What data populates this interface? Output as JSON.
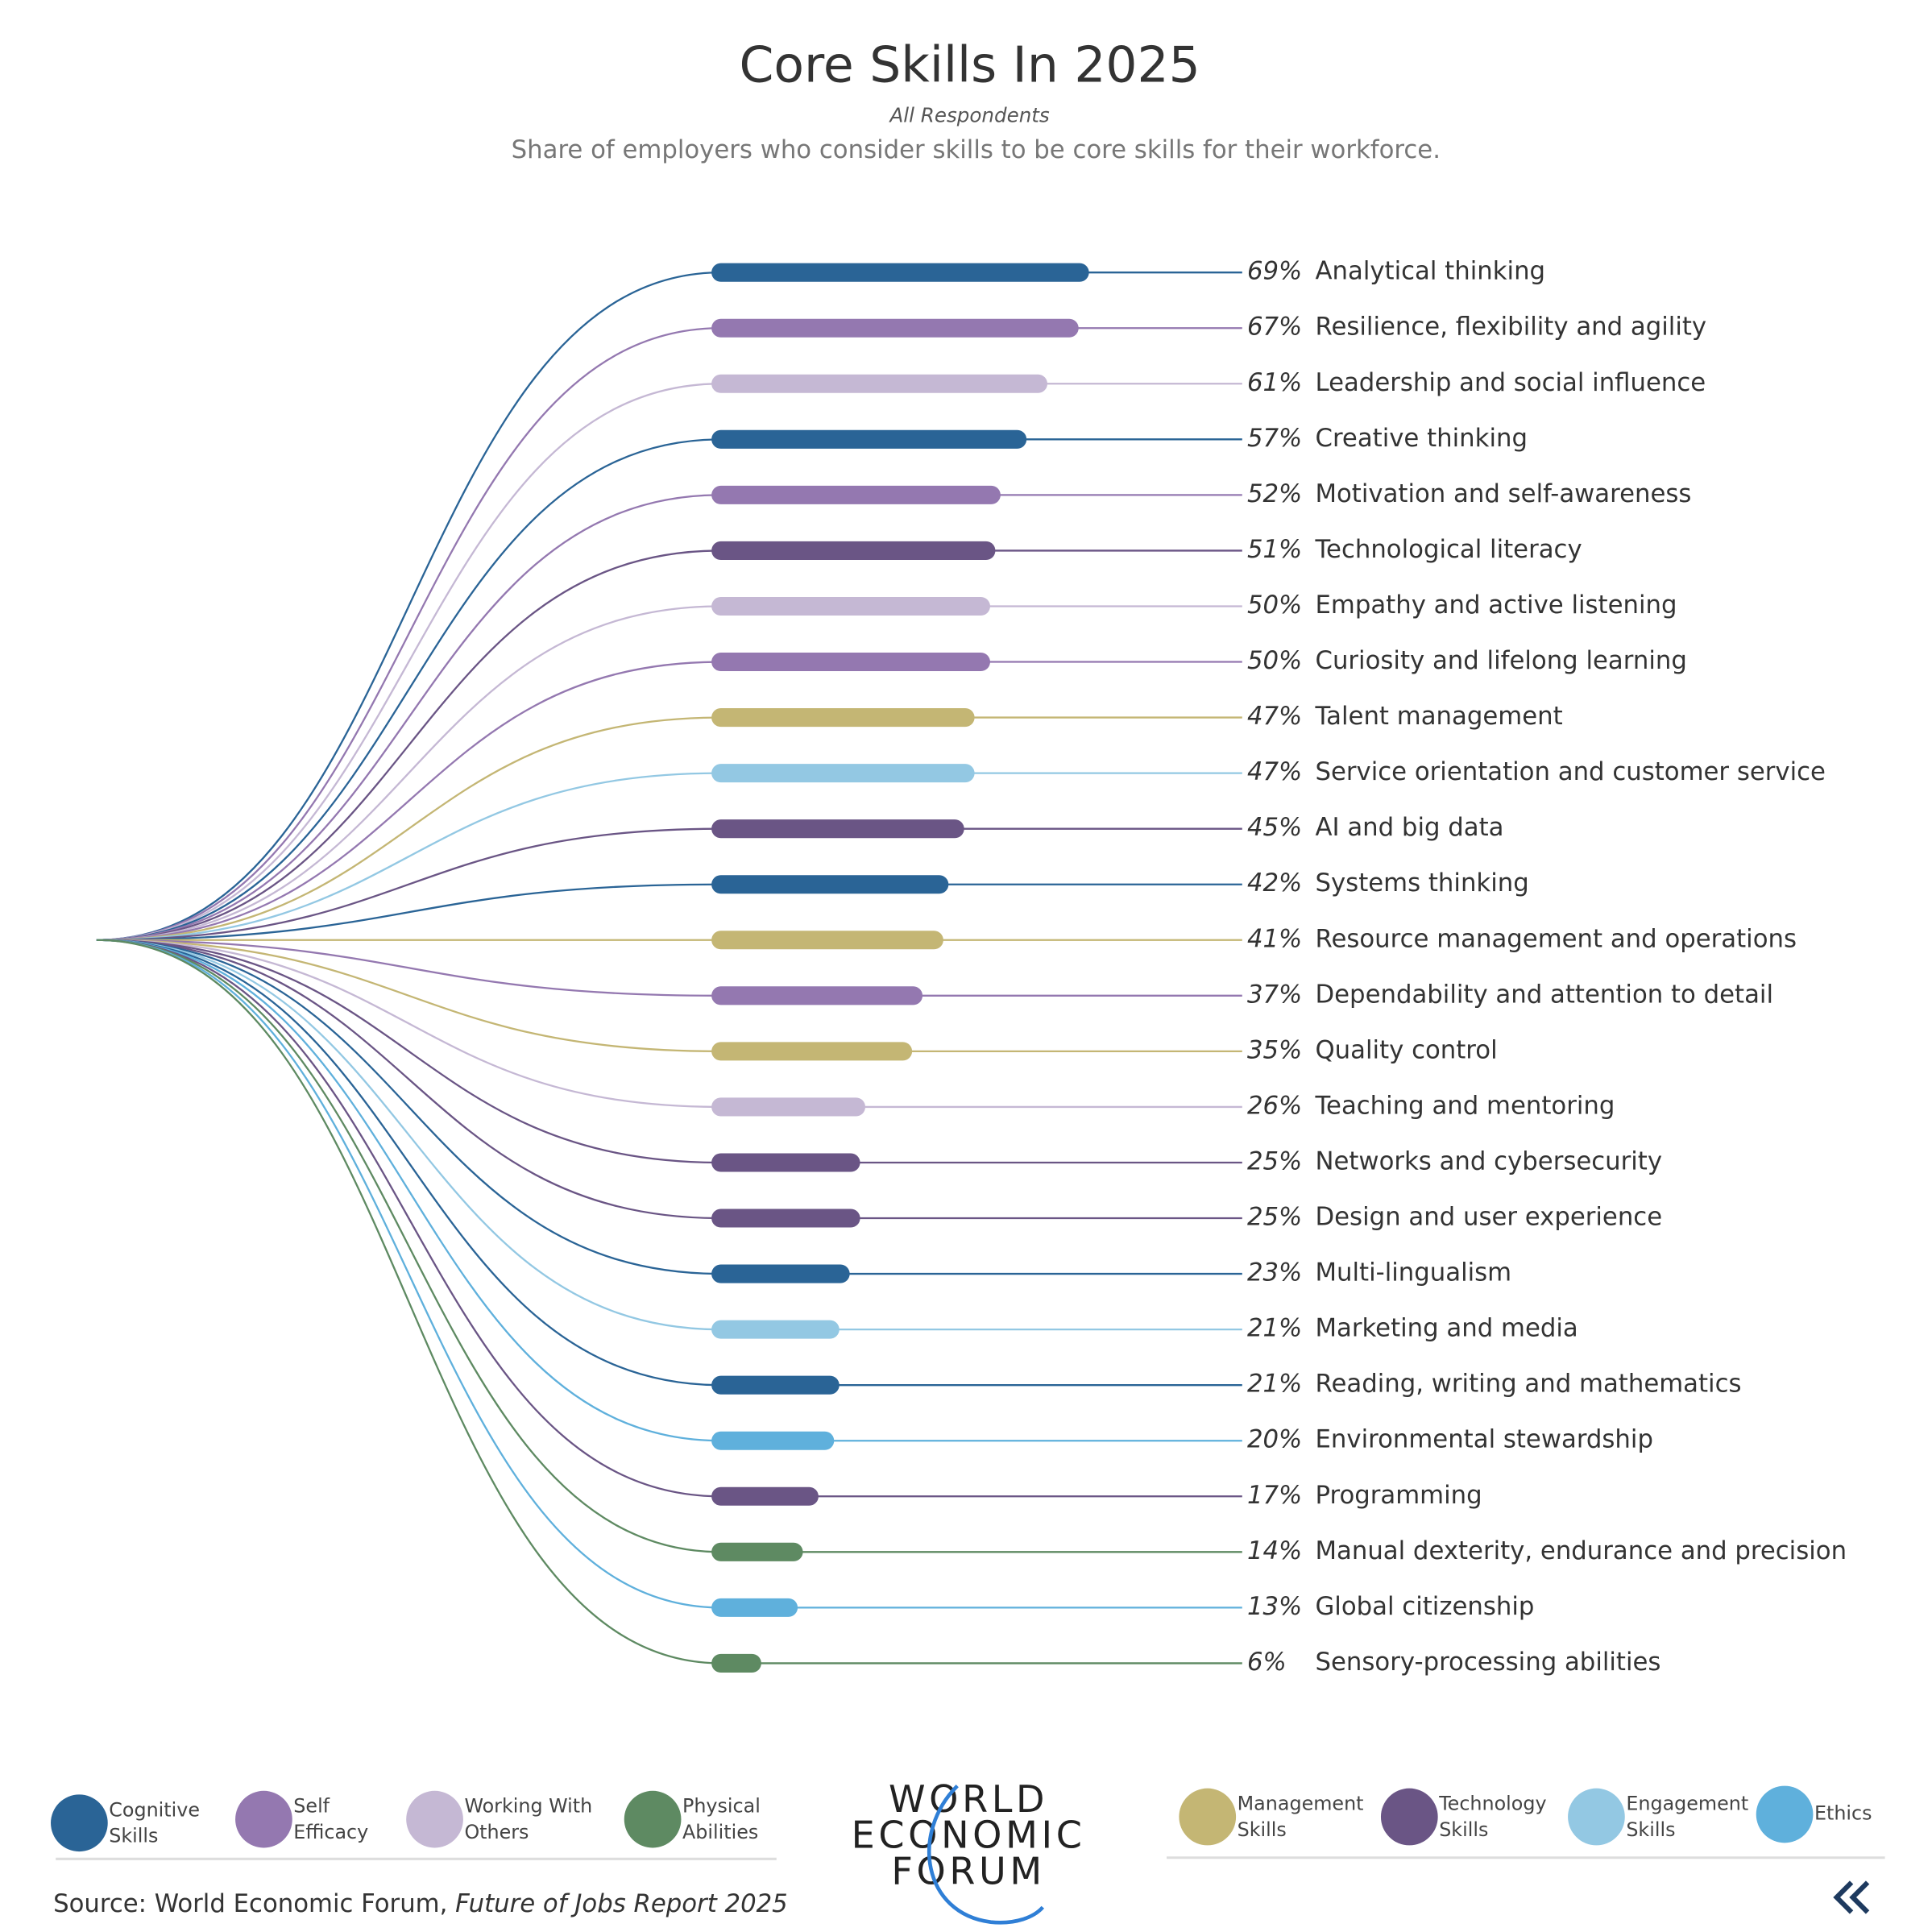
{
  "chart_data": {
    "type": "bar",
    "orientation": "horizontal",
    "title": "Core Skills In 2025",
    "subtitle": "All Respondents",
    "description": "Share of employers who consider skills to be core skills for their workforce.",
    "categories": [
      "Analytical thinking",
      "Resilience, flexibility and agility",
      "Leadership and social influence",
      "Creative thinking",
      "Motivation and self-awareness",
      "Technological literacy",
      "Empathy and active listening",
      "Curiosity and lifelong learning",
      "Talent management",
      "Service orientation and customer service",
      "AI and big data",
      "Systems thinking",
      "Resource management and operations",
      "Dependability and attention to detail",
      "Quality control",
      "Teaching and mentoring",
      "Networks and cybersecurity",
      "Design and user experience",
      "Multi-lingualism",
      "Marketing and media",
      "Reading, writing and mathematics",
      "Environmental stewardship",
      "Programming",
      "Manual dexterity, endurance and precision",
      "Global citizenship",
      "Sensory-processing abilities"
    ],
    "values": [
      69,
      67,
      61,
      57,
      52,
      51,
      50,
      50,
      47,
      47,
      45,
      42,
      41,
      37,
      35,
      26,
      25,
      25,
      23,
      21,
      21,
      20,
      17,
      14,
      13,
      6
    ],
    "value_labels": [
      "69%",
      "67%",
      "61%",
      "57%",
      "52%",
      "51%",
      "50%",
      "50%",
      "47%",
      "47%",
      "45%",
      "42%",
      "41%",
      "37%",
      "35%",
      "26%",
      "25%",
      "25%",
      "23%",
      "21%",
      "21%",
      "20%",
      "17%",
      "14%",
      "13%",
      "6%"
    ],
    "groups": [
      "Cognitive Skills",
      "Self Efficacy",
      "Working With Others",
      "Cognitive Skills",
      "Self Efficacy",
      "Technology Skills",
      "Working With Others",
      "Self Efficacy",
      "Management Skills",
      "Engagement Skills",
      "Technology Skills",
      "Cognitive Skills",
      "Management Skills",
      "Self Efficacy",
      "Management Skills",
      "Working With Others",
      "Technology Skills",
      "Technology Skills",
      "Cognitive Skills",
      "Engagement Skills",
      "Cognitive Skills",
      "Ethics",
      "Technology Skills",
      "Physical Abilities",
      "Ethics",
      "Physical Abilities"
    ],
    "legend": [
      {
        "name": "Cognitive Skills",
        "color": "#2a6496"
      },
      {
        "name": "Self Efficacy",
        "color": "#9478b0"
      },
      {
        "name": "Working With Others",
        "color": "#c5b8d4"
      },
      {
        "name": "Physical Abilities",
        "color": "#5e8a62"
      },
      {
        "name": "Management Skills",
        "color": "#c4b674"
      },
      {
        "name": "Technology Skills",
        "color": "#6a5585"
      },
      {
        "name": "Engagement Skills",
        "color": "#93c8e3"
      },
      {
        "name": "Ethics",
        "color": "#5fb0dc"
      }
    ],
    "source_prefix": "Source: World Economic Forum,",
    "source_title": "Future of Jobs Report 2025",
    "logo": [
      "WORLD",
      "ECONOMIC",
      "FORUM"
    ]
  }
}
